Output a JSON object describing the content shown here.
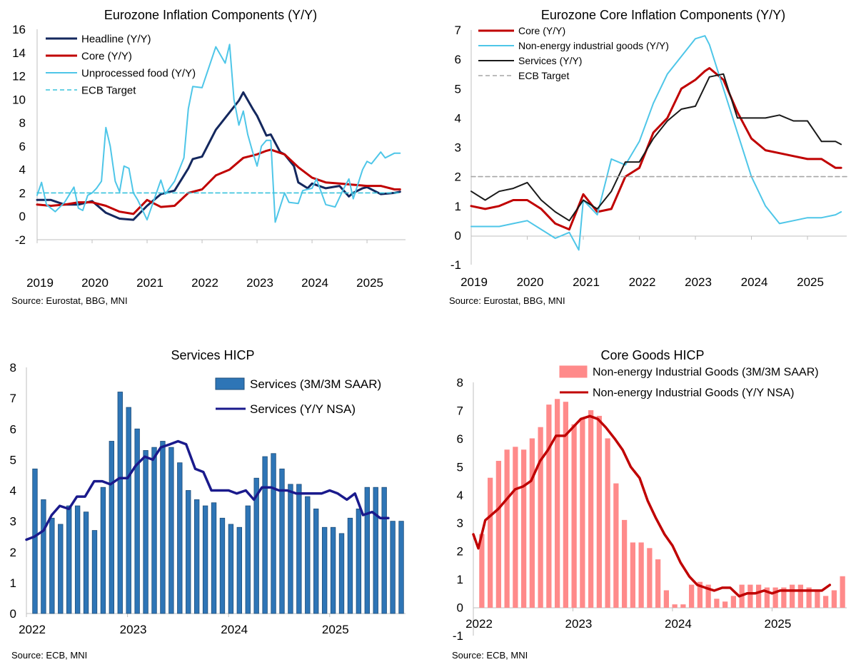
{
  "chart_data": [
    {
      "type": "line",
      "title": "Eurozone Inflation Components (Y/Y)",
      "source": "Source: Eurostat, BBG, MNI",
      "ylim": [
        -2,
        16
      ],
      "yticks": [
        "-2",
        "0",
        "2",
        "4",
        "6",
        "8",
        "10",
        "12",
        "14",
        "16"
      ],
      "xlim": [
        2019.0,
        2025.7
      ],
      "xticks": [
        "2019",
        "2020",
        "2021",
        "2022",
        "2023",
        "2024",
        "2025"
      ],
      "legend_position": "top-left",
      "series": [
        {
          "name": "Headline (Y/Y)",
          "color": "#14285e",
          "width": 3,
          "x": [
            2019.0,
            2019.25,
            2019.5,
            2019.75,
            2020.0,
            2020.25,
            2020.5,
            2020.75,
            2021.0,
            2021.25,
            2021.5,
            2021.75,
            2021.83,
            2022.0,
            2022.25,
            2022.5,
            2022.67,
            2022.75,
            2022.92,
            2023.0,
            2023.17,
            2023.25,
            2023.42,
            2023.5,
            2023.67,
            2023.75,
            2023.92,
            2024.0,
            2024.25,
            2024.5,
            2024.67,
            2024.75,
            2024.92,
            2025.0,
            2025.25,
            2025.5,
            2025.6
          ],
          "y": [
            1.4,
            1.4,
            1.0,
            1.0,
            1.3,
            0.3,
            -0.2,
            -0.3,
            0.9,
            1.9,
            2.2,
            4.1,
            4.9,
            5.1,
            7.4,
            8.9,
            9.9,
            10.6,
            9.2,
            8.6,
            6.9,
            7.0,
            5.5,
            5.3,
            4.3,
            2.9,
            2.4,
            2.8,
            2.4,
            2.6,
            1.7,
            2.0,
            2.4,
            2.5,
            1.9,
            2.0,
            2.1
          ]
        },
        {
          "name": "Core (Y/Y)",
          "color": "#c00000",
          "width": 3,
          "x": [
            2019.0,
            2019.25,
            2019.5,
            2019.75,
            2020.0,
            2020.25,
            2020.5,
            2020.75,
            2021.0,
            2021.25,
            2021.5,
            2021.75,
            2022.0,
            2022.25,
            2022.5,
            2022.75,
            2023.0,
            2023.17,
            2023.25,
            2023.5,
            2023.75,
            2024.0,
            2024.25,
            2024.5,
            2024.75,
            2025.0,
            2025.25,
            2025.5,
            2025.6
          ],
          "y": [
            1.0,
            0.9,
            1.0,
            1.2,
            1.2,
            0.9,
            0.4,
            0.2,
            1.4,
            0.8,
            0.9,
            2.0,
            2.3,
            3.5,
            4.0,
            5.0,
            5.3,
            5.6,
            5.7,
            5.3,
            4.2,
            3.3,
            2.9,
            2.8,
            2.7,
            2.6,
            2.6,
            2.3,
            2.3
          ]
        },
        {
          "name": "Unprocessed food (Y/Y)",
          "color": "#4ec6e8",
          "width": 2,
          "x": [
            2019.0,
            2019.08,
            2019.17,
            2019.33,
            2019.5,
            2019.67,
            2019.75,
            2019.83,
            2019.92,
            2020.0,
            2020.08,
            2020.17,
            2020.25,
            2020.33,
            2020.42,
            2020.5,
            2020.58,
            2020.67,
            2020.75,
            2020.83,
            2021.0,
            2021.17,
            2021.25,
            2021.33,
            2021.5,
            2021.67,
            2021.75,
            2021.83,
            2022.0,
            2022.25,
            2022.42,
            2022.5,
            2022.58,
            2022.67,
            2022.75,
            2022.83,
            2022.92,
            2023.0,
            2023.08,
            2023.17,
            2023.25,
            2023.33,
            2023.5,
            2023.58,
            2023.75,
            2023.83,
            2024.0,
            2024.08,
            2024.25,
            2024.42,
            2024.58,
            2024.67,
            2024.75,
            2024.92,
            2025.0,
            2025.08,
            2025.25,
            2025.33,
            2025.5,
            2025.6
          ],
          "y": [
            1.8,
            2.9,
            1.0,
            0.4,
            1.2,
            2.5,
            0.7,
            0.5,
            1.8,
            2.0,
            2.4,
            3.0,
            7.6,
            6.0,
            3.0,
            2.1,
            4.3,
            4.1,
            2.0,
            1.4,
            -0.3,
            2.0,
            3.1,
            1.9,
            3.0,
            5.0,
            9.2,
            11.1,
            11.0,
            14.5,
            13.1,
            14.7,
            10.0,
            7.8,
            9.0,
            7.0,
            5.5,
            4.3,
            6.0,
            6.5,
            6.5,
            -0.5,
            2.0,
            1.2,
            1.1,
            2.2,
            2.4,
            3.2,
            1.0,
            0.8,
            2.4,
            3.2,
            1.5,
            4.0,
            4.7,
            4.5,
            5.5,
            5.0,
            5.4,
            5.4
          ]
        },
        {
          "name": "ECB Target",
          "color": "#38c3dc",
          "width": 1.6,
          "dash": "6,4",
          "x": [
            2019.0,
            2025.6
          ],
          "y": [
            2,
            2
          ]
        }
      ]
    },
    {
      "type": "line",
      "title": "Eurozone Core Inflation Components (Y/Y)",
      "source": "Source: Eurostat, BBG, MNI",
      "ylim": [
        -1,
        7
      ],
      "yticks": [
        "-1",
        "0",
        "1",
        "2",
        "3",
        "4",
        "5",
        "6",
        "7"
      ],
      "xlim": [
        2019.0,
        2025.7
      ],
      "xticks": [
        "2019",
        "2020",
        "2021",
        "2022",
        "2023",
        "2024",
        "2025"
      ],
      "legend_position": "top-left",
      "series": [
        {
          "name": "Core (Y/Y)",
          "color": "#c00000",
          "width": 3,
          "x": [
            2019.0,
            2019.25,
            2019.5,
            2019.75,
            2020.0,
            2020.25,
            2020.5,
            2020.75,
            2021.0,
            2021.25,
            2021.5,
            2021.75,
            2022.0,
            2022.25,
            2022.5,
            2022.75,
            2023.0,
            2023.17,
            2023.25,
            2023.5,
            2023.75,
            2024.0,
            2024.25,
            2024.5,
            2024.75,
            2025.0,
            2025.25,
            2025.5,
            2025.6
          ],
          "y": [
            1.0,
            0.9,
            1.0,
            1.2,
            1.2,
            0.9,
            0.4,
            0.2,
            1.4,
            0.8,
            0.9,
            2.0,
            2.3,
            3.5,
            4.0,
            5.0,
            5.3,
            5.6,
            5.7,
            5.3,
            4.2,
            3.3,
            2.9,
            2.8,
            2.7,
            2.6,
            2.6,
            2.3,
            2.3
          ]
        },
        {
          "name": "Non-energy industrial goods (Y/Y)",
          "color": "#4ec6e8",
          "width": 2,
          "x": [
            2019.0,
            2019.25,
            2019.5,
            2019.75,
            2020.0,
            2020.25,
            2020.5,
            2020.75,
            2020.92,
            2021.0,
            2021.25,
            2021.5,
            2021.75,
            2022.0,
            2022.25,
            2022.5,
            2022.75,
            2023.0,
            2023.17,
            2023.25,
            2023.5,
            2023.75,
            2024.0,
            2024.25,
            2024.5,
            2024.75,
            2025.0,
            2025.25,
            2025.5,
            2025.6
          ],
          "y": [
            0.3,
            0.3,
            0.3,
            0.4,
            0.5,
            0.2,
            -0.1,
            0.1,
            -0.5,
            1.2,
            0.7,
            2.6,
            2.4,
            3.2,
            4.5,
            5.5,
            6.1,
            6.7,
            6.8,
            6.5,
            5.0,
            3.5,
            2.0,
            1.0,
            0.4,
            0.5,
            0.6,
            0.6,
            0.7,
            0.8
          ]
        },
        {
          "name": "Services (Y/Y)",
          "color": "#1a1a1a",
          "width": 2,
          "x": [
            2019.0,
            2019.25,
            2019.5,
            2019.75,
            2020.0,
            2020.25,
            2020.5,
            2020.75,
            2021.0,
            2021.25,
            2021.5,
            2021.75,
            2022.0,
            2022.25,
            2022.5,
            2022.75,
            2023.0,
            2023.25,
            2023.5,
            2023.75,
            2024.0,
            2024.25,
            2024.5,
            2024.75,
            2025.0,
            2025.25,
            2025.5,
            2025.6
          ],
          "y": [
            1.5,
            1.2,
            1.5,
            1.6,
            1.8,
            1.2,
            0.8,
            0.5,
            1.2,
            0.9,
            1.5,
            2.5,
            2.5,
            3.3,
            3.9,
            4.3,
            4.4,
            5.4,
            5.5,
            4.0,
            4.0,
            4.0,
            4.1,
            3.9,
            3.9,
            3.2,
            3.2,
            3.1
          ]
        },
        {
          "name": "ECB Target",
          "color": "#a6a6a6",
          "width": 1.6,
          "dash": "6,4",
          "x": [
            2019.0,
            2025.7
          ],
          "y": [
            2,
            2
          ]
        }
      ]
    },
    {
      "type": "bar-line",
      "title": "Services HICP",
      "source": "Source: ECB, MNI",
      "ylim": [
        0,
        8
      ],
      "yticks": [
        "0",
        "1",
        "2",
        "3",
        "4",
        "5",
        "6",
        "7",
        "8"
      ],
      "xlim": [
        2022.0,
        2025.75
      ],
      "xticks": [
        "2022",
        "2023",
        "2024",
        "2025"
      ],
      "legend_position": "top-right",
      "bars": {
        "name": "Services (3M/3M SAAR)",
        "color": "#2e75b6",
        "edge": "#1f4e79",
        "values": [
          4.7,
          3.7,
          3.1,
          2.9,
          3.5,
          3.5,
          3.3,
          2.7,
          4.1,
          5.6,
          7.2,
          6.7,
          6.0,
          5.3,
          5.4,
          5.6,
          5.4,
          4.9,
          4.0,
          3.7,
          3.5,
          3.6,
          3.1,
          2.9,
          2.8,
          3.5,
          4.4,
          5.1,
          5.2,
          4.7,
          4.2,
          4.2,
          3.8,
          3.4,
          2.8,
          2.8,
          2.6,
          3.1,
          3.4,
          4.1,
          4.1,
          4.1,
          3.0,
          3.0
        ]
      },
      "line": {
        "name": "Services (Y/Y NSA)",
        "color": "#1a1a8c",
        "width": 3.5,
        "x": [
          2022.0,
          2022.08,
          2022.17,
          2022.25,
          2022.33,
          2022.42,
          2022.5,
          2022.58,
          2022.67,
          2022.75,
          2022.83,
          2022.92,
          2023.0,
          2023.08,
          2023.17,
          2023.25,
          2023.33,
          2023.42,
          2023.5,
          2023.58,
          2023.67,
          2023.75,
          2023.83,
          2023.92,
          2024.0,
          2024.08,
          2024.17,
          2024.25,
          2024.33,
          2024.42,
          2024.5,
          2024.58,
          2024.67,
          2024.75,
          2024.83,
          2024.92,
          2025.0,
          2025.08,
          2025.17,
          2025.25,
          2025.33,
          2025.42,
          2025.5,
          2025.58
        ],
        "y": [
          2.4,
          2.5,
          2.7,
          3.2,
          3.5,
          3.4,
          3.8,
          3.8,
          4.3,
          4.3,
          4.2,
          4.4,
          4.4,
          4.8,
          5.1,
          5.0,
          5.4,
          5.5,
          5.6,
          5.5,
          4.7,
          4.6,
          4.0,
          4.0,
          4.0,
          3.9,
          4.0,
          3.7,
          4.1,
          4.1,
          4.0,
          4.0,
          3.9,
          3.9,
          3.9,
          3.9,
          4.0,
          3.9,
          3.7,
          3.9,
          3.2,
          3.3,
          3.1,
          3.1
        ]
      }
    },
    {
      "type": "bar-line",
      "title": "Core Goods HICP",
      "source": "Source: ECB, MNI",
      "ylim": [
        -1,
        8
      ],
      "yticks": [
        "-1",
        "0",
        "1",
        "2",
        "3",
        "4",
        "5",
        "6",
        "7",
        "8"
      ],
      "xlim": [
        2022.0,
        2025.75
      ],
      "xticks": [
        "2022",
        "2023",
        "2024",
        "2025"
      ],
      "legend_position": "top-right",
      "bars": {
        "name": "Non-energy Industrial Goods (3M/3M SAAR)",
        "color": "#ff8a8a",
        "edge": "#ff8a8a",
        "values": [
          2.6,
          4.6,
          5.2,
          5.6,
          5.7,
          5.6,
          6.0,
          6.4,
          7.2,
          7.4,
          7.3,
          6.5,
          6.7,
          7.0,
          6.8,
          6.0,
          4.4,
          3.1,
          2.3,
          2.3,
          2.1,
          1.7,
          0.6,
          0.1,
          0.1,
          0.8,
          0.9,
          0.8,
          0.3,
          0.2,
          0.4,
          0.8,
          0.8,
          0.8,
          0.7,
          0.7,
          0.7,
          0.8,
          0.8,
          0.7,
          0.6,
          0.4,
          0.6,
          1.1
        ]
      },
      "line": {
        "name": "Non-energy Industrial Goods (Y/Y NSA)",
        "color": "#c00000",
        "width": 3.5,
        "x": [
          2022.0,
          2022.05,
          2022.12,
          2022.25,
          2022.42,
          2022.5,
          2022.58,
          2022.67,
          2022.75,
          2022.83,
          2022.92,
          2023.0,
          2023.08,
          2023.17,
          2023.25,
          2023.33,
          2023.42,
          2023.5,
          2023.58,
          2023.67,
          2023.75,
          2023.83,
          2023.92,
          2024.0,
          2024.08,
          2024.17,
          2024.25,
          2024.33,
          2024.42,
          2024.5,
          2024.58,
          2024.67,
          2024.75,
          2024.83,
          2024.92,
          2025.0,
          2025.08,
          2025.17,
          2025.25,
          2025.33,
          2025.42,
          2025.5,
          2025.58
        ],
        "y": [
          2.6,
          2.1,
          3.1,
          3.5,
          4.2,
          4.3,
          4.5,
          5.2,
          5.6,
          6.1,
          6.1,
          6.4,
          6.7,
          6.8,
          6.7,
          6.4,
          6.0,
          5.6,
          5.0,
          4.6,
          3.8,
          3.2,
          2.6,
          2.2,
          1.6,
          1.1,
          0.8,
          0.7,
          0.6,
          0.7,
          0.7,
          0.4,
          0.5,
          0.5,
          0.6,
          0.5,
          0.6,
          0.6,
          0.6,
          0.6,
          0.6,
          0.6,
          0.8
        ]
      }
    }
  ]
}
